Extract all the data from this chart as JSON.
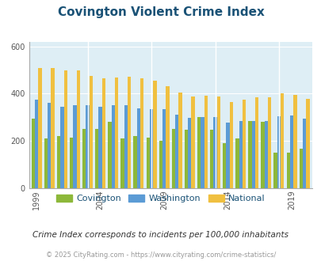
{
  "title": "Covington Violent Crime Index",
  "subtitle": "Crime Index corresponds to incidents per 100,000 inhabitants",
  "footer": "© 2025 CityRating.com - https://www.cityrating.com/crime-statistics/",
  "years": [
    1999,
    2000,
    2001,
    2002,
    2003,
    2004,
    2005,
    2006,
    2007,
    2008,
    2009,
    2010,
    2011,
    2012,
    2013,
    2014,
    2015,
    2016,
    2017,
    2018,
    2019,
    2020
  ],
  "covington": [
    295,
    210,
    220,
    215,
    250,
    250,
    280,
    210,
    220,
    215,
    200,
    250,
    248,
    300,
    248,
    190,
    210,
    285,
    280,
    148,
    148,
    165
  ],
  "washington": [
    375,
    360,
    345,
    350,
    350,
    345,
    350,
    350,
    338,
    335,
    335,
    310,
    298,
    300,
    300,
    278,
    285,
    285,
    283,
    305,
    308,
    295
  ],
  "national": [
    510,
    510,
    500,
    500,
    475,
    465,
    470,
    473,
    465,
    455,
    430,
    405,
    388,
    390,
    388,
    365,
    375,
    383,
    383,
    400,
    395,
    378
  ],
  "covington_color": "#8db83a",
  "washington_color": "#5b9bd5",
  "national_color": "#f0c040",
  "bg_color": "#deeef5",
  "ylim": [
    0,
    620
  ],
  "yticks": [
    0,
    200,
    400,
    600
  ],
  "title_color": "#1a5276",
  "title_fontsize": 11,
  "legend_fontsize": 8,
  "subtitle_fontsize": 7.5,
  "footer_fontsize": 6,
  "bar_width": 0.27
}
